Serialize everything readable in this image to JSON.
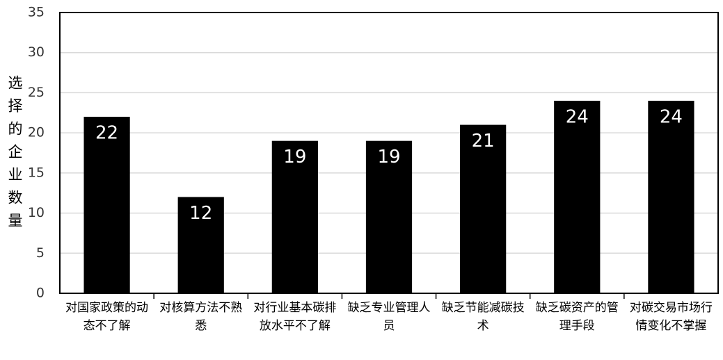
{
  "chart_data": {
    "type": "bar",
    "y_label": "选择的企业数量",
    "categories": [
      "对国家政策的动态不了解",
      "对核算方法不熟悉",
      "对行业基本碳排放水平不了解",
      "缺乏专业管理人员",
      "缺乏节能减碳技术",
      "缺乏碳资产的管理手段",
      "对碳交易市场行情变化不掌握"
    ],
    "values": [
      22,
      12,
      19,
      19,
      21,
      24,
      24
    ],
    "color": "#000000",
    "label_color": "#ffffff",
    "ylim": [
      0,
      35
    ],
    "yticks": [
      0,
      5,
      10,
      15,
      20,
      25,
      30,
      35
    ],
    "grid": true
  }
}
